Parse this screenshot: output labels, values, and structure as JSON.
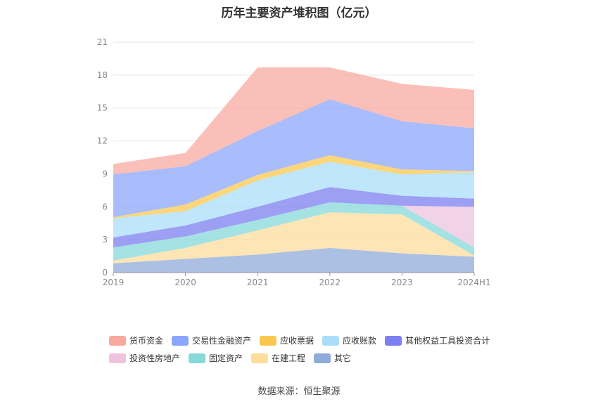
{
  "chart_data": {
    "type": "area",
    "stacked": true,
    "title": "历年主要资产堆积图（亿元）",
    "categories": [
      "2019",
      "2020",
      "2021",
      "2022",
      "2023",
      "2024H1"
    ],
    "y_ticks": [
      "0",
      "3",
      "6",
      "9",
      "12",
      "15",
      "18",
      "21"
    ],
    "ylim": [
      0,
      21
    ],
    "grid": true,
    "legend_position": "bottom",
    "series": [
      {
        "name": "其它",
        "color": "#8fabd8",
        "values": [
          0.85,
          1.25,
          1.65,
          2.25,
          1.75,
          1.45
        ]
      },
      {
        "name": "在建工程",
        "color": "#fddc9c",
        "values": [
          0.25,
          1.0,
          2.2,
          3.25,
          3.55,
          0.1
        ]
      },
      {
        "name": "固定资产",
        "color": "#87d8d9",
        "values": [
          1.2,
          1.05,
          0.95,
          0.9,
          0.8,
          0.75
        ]
      },
      {
        "name": "投资性房地产",
        "color": "#eec3df",
        "values": [
          0,
          0,
          0,
          0,
          0,
          3.7
        ]
      },
      {
        "name": "其他权益工具投资合计",
        "color": "#7b7ff0",
        "values": [
          0.9,
          1.0,
          1.2,
          1.4,
          0.9,
          0.75
        ]
      },
      {
        "name": "应收账款",
        "color": "#a9def8",
        "values": [
          1.75,
          1.3,
          2.4,
          2.3,
          1.95,
          2.4
        ]
      },
      {
        "name": "应收票据",
        "color": "#fbc84f",
        "values": [
          0.1,
          0.6,
          0.5,
          0.6,
          0.45,
          0.1
        ]
      },
      {
        "name": "交易性金融资产",
        "color": "#8ca6fb",
        "values": [
          3.9,
          3.5,
          4.0,
          5.1,
          4.4,
          3.9
        ]
      },
      {
        "name": "货币资金",
        "color": "#f8a9a0",
        "values": [
          0.95,
          1.2,
          5.8,
          2.9,
          3.4,
          3.5
        ]
      }
    ],
    "legend": [
      [
        "货币资金",
        "交易性金融资产",
        "应收票据",
        "应收账款",
        "其他权益工具投资合计"
      ],
      [
        "投资性房地产",
        "固定资产",
        "在建工程",
        "其它"
      ]
    ]
  },
  "source": "数据来源：恒生聚源"
}
